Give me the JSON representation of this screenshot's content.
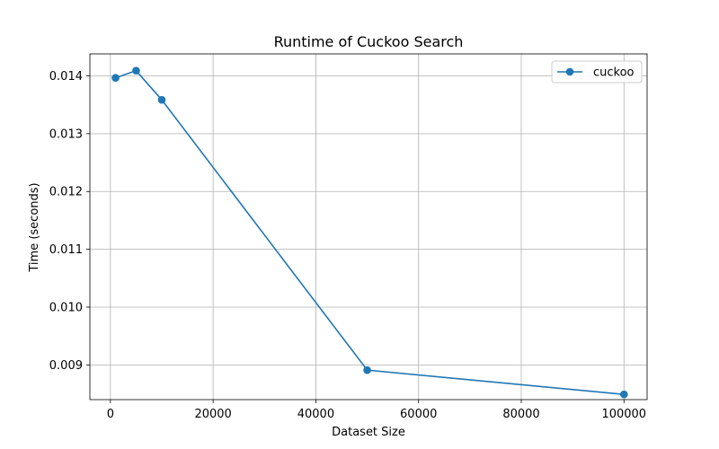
{
  "chart_data": {
    "type": "line",
    "title": "Runtime of Cuckoo Search",
    "xlabel": "Dataset Size",
    "ylabel": "Time (seconds)",
    "xlim": [
      -4000,
      104500
    ],
    "ylim": [
      0.0084,
      0.01438
    ],
    "xticks": [
      0,
      20000,
      40000,
      60000,
      80000,
      100000
    ],
    "xtick_labels": [
      "0",
      "20000",
      "40000",
      "60000",
      "80000",
      "100000"
    ],
    "yticks": [
      0.009,
      0.01,
      0.011,
      0.012,
      0.013,
      0.014
    ],
    "ytick_labels": [
      "0.009",
      "0.010",
      "0.011",
      "0.012",
      "0.013",
      "0.014"
    ],
    "grid": true,
    "legend_position": "top-right",
    "series": [
      {
        "name": "cuckoo",
        "color": "#1f77b4",
        "marker": "circle",
        "x": [
          1000,
          5000,
          10000,
          50000,
          100000
        ],
        "y": [
          0.013965,
          0.01409,
          0.013585,
          0.00891,
          0.00849
        ]
      }
    ]
  }
}
